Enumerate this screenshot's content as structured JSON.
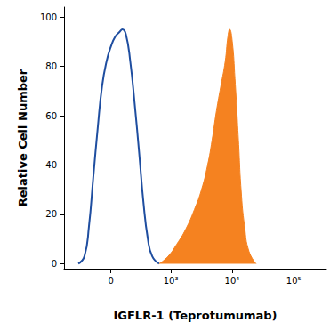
{
  "chart_data": {
    "type": "line",
    "xlabel": "IGFLR-1 (Teprotumumab)",
    "ylabel": "Relative Cell Number",
    "xlim": [
      -600,
      340000
    ],
    "xticks": [
      0,
      {
        "value": 1000,
        "label": "10³"
      },
      {
        "value": 10000,
        "label": "10⁴"
      },
      {
        "value": 100000,
        "label": "10⁵"
      }
    ],
    "ylim": [
      -2,
      104
    ],
    "yticks": [
      0,
      20,
      40,
      60,
      80,
      100
    ],
    "grid": false,
    "series": [
      {
        "type": "line",
        "color": "#1f4ea0",
        "x": [
          -331,
          -249,
          -197,
          -152,
          -110,
          -72,
          -35,
          0,
          35,
          72,
          95,
          127,
          170,
          217,
          272,
          331,
          402,
          482,
          636
        ],
        "values": [
          0,
          3,
          15,
          35,
          55,
          72,
          82,
          88,
          92,
          94,
          95,
          93,
          82,
          65,
          45,
          25,
          10,
          3,
          0
        ]
      },
      {
        "type": "area",
        "color": "#f58220",
        "x": [
          636,
          900,
          1260,
          1760,
          2440,
          3180,
          4000,
          4720,
          5570,
          6560,
          7730,
          8540,
          9120,
          10060,
          11120,
          12680,
          13980,
          15950,
          18790,
          24470
        ],
        "values": [
          0,
          3,
          8,
          14,
          22,
          30,
          40,
          50,
          62,
          72,
          82,
          92,
          95,
          90,
          75,
          50,
          30,
          15,
          5,
          0
        ]
      }
    ]
  }
}
